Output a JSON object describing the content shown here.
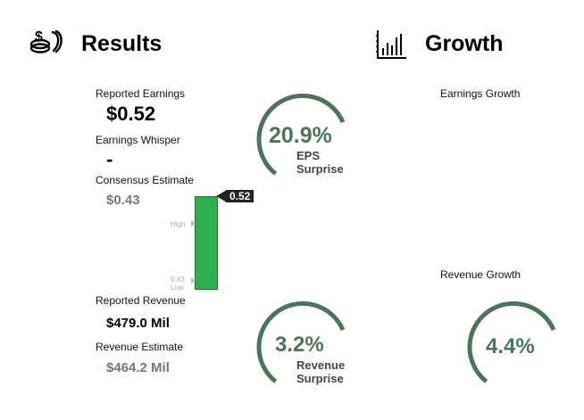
{
  "results": {
    "title": "Results",
    "icon": "money-hand-icon",
    "reported_earnings_label": "Reported Earnings",
    "reported_earnings_value": "$0.52",
    "earnings_whisper_label": "Earnings Whisper",
    "earnings_whisper_value": "-",
    "consensus_label": "Consensus Estimate",
    "consensus_value": "$0.43",
    "eps_surprise_pct": "20.9%",
    "eps_surprise_label_1": "EPS",
    "eps_surprise_label_2": "Surprise",
    "reported_revenue_label": "Reported Revenue",
    "reported_revenue_value": "$479.0 Mil",
    "revenue_estimate_label": "Revenue Estimate",
    "revenue_estimate_value": "$464.2 Mil",
    "revenue_surprise_pct": "3.2%",
    "revenue_surprise_label_1": "Revenue",
    "revenue_surprise_label_2": "Surprise"
  },
  "eps_bar": {
    "actual": 0.52,
    "actual_label": "0.52",
    "low_label_value": "0.43",
    "low_label": "Low",
    "high_label": "High",
    "bar_color": "#2fae4f"
  },
  "growth": {
    "title": "Growth",
    "icon": "bar-chart-icon",
    "earnings_growth_label": "Earnings Growth",
    "revenue_growth_label": "Revenue Growth",
    "revenue_growth_pct": "4.4%"
  },
  "colors": {
    "ring": "#4a7556",
    "ring_text": "#4a7556"
  }
}
